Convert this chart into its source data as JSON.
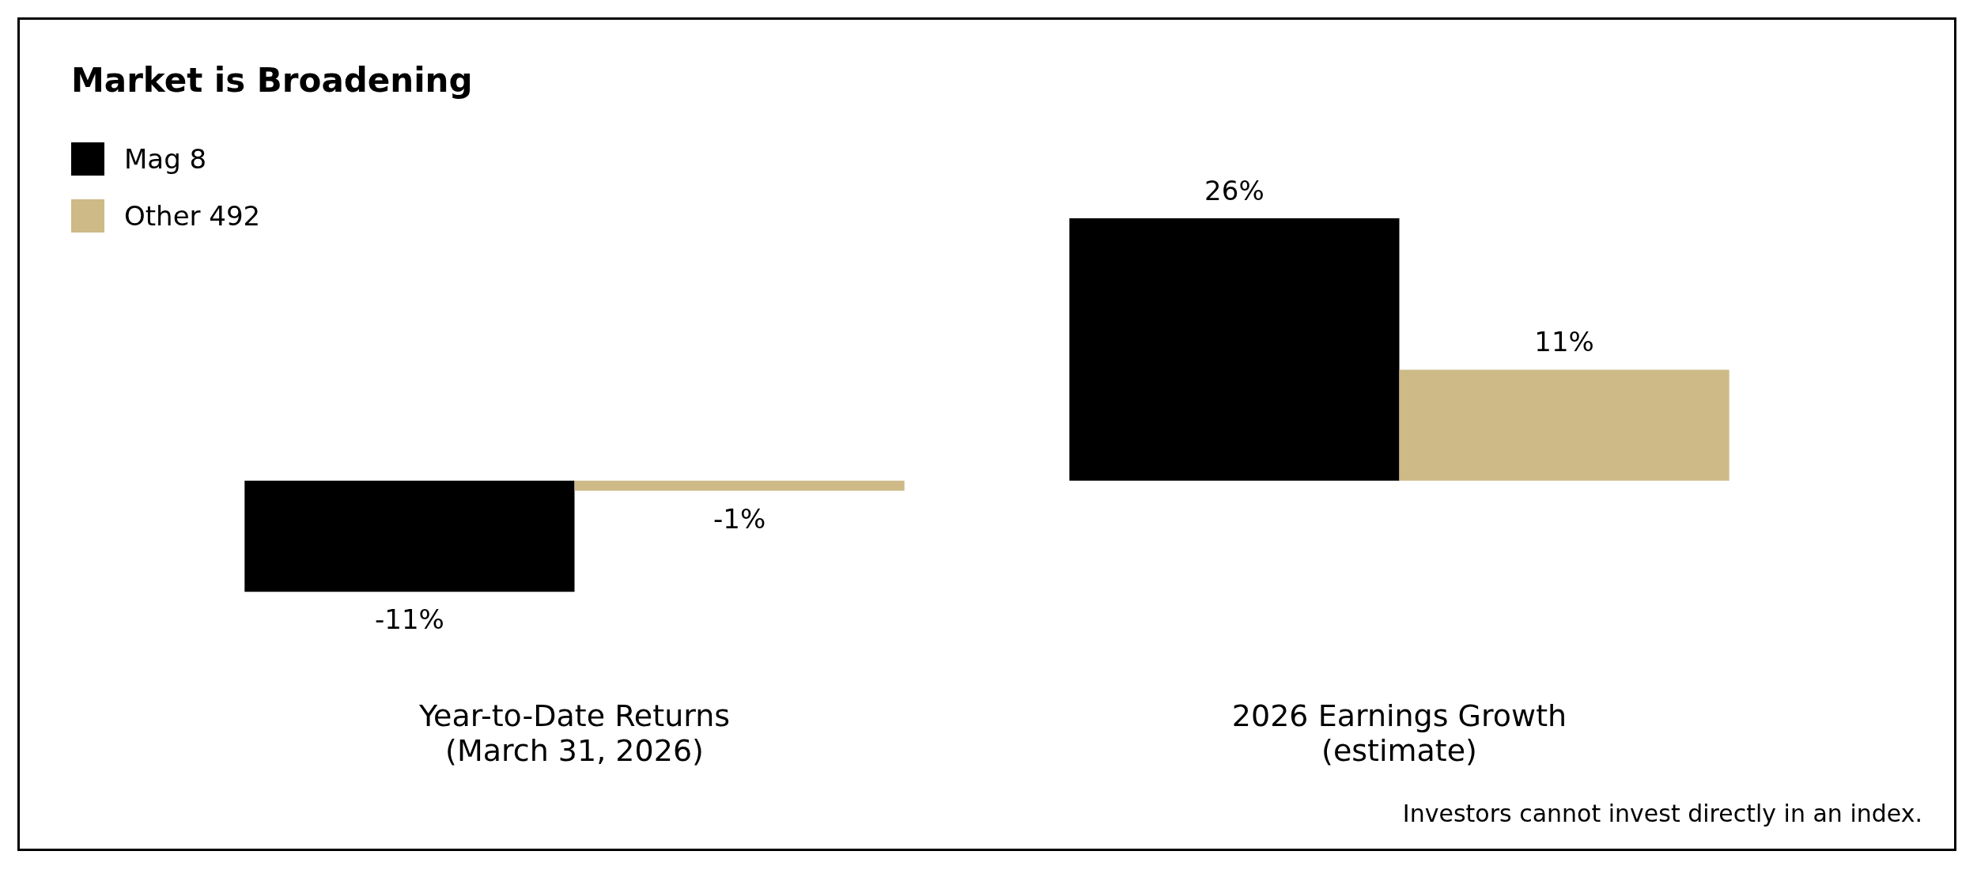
{
  "chart_data": {
    "type": "bar",
    "title": "Market is Broadening",
    "categories": [
      "Year-to-Date Returns\n(March 31, 2026)",
      "2026 Earnings Growth\n(estimate)"
    ],
    "series": [
      {
        "name": "Mag 8",
        "color": "#000000",
        "values": [
          -11,
          26
        ],
        "value_labels": [
          "-11%",
          "26%"
        ]
      },
      {
        "name": "Other 492",
        "color": "#cdba87",
        "values": [
          -1,
          11
        ],
        "value_labels": [
          "-1%",
          "11%"
        ]
      }
    ],
    "legend": "top left",
    "annotations": [
      "Investors cannot invest directly in an index."
    ]
  }
}
